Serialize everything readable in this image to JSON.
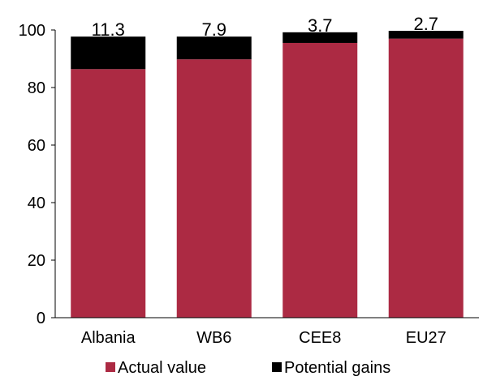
{
  "chart_data": {
    "type": "bar",
    "stacked": true,
    "categories": [
      "Albania",
      "WB6",
      "CEE8",
      "EU27"
    ],
    "series": [
      {
        "name": "Actual value",
        "values": [
          86.4,
          89.8,
          95.5,
          97.0
        ],
        "color": "#ac2a43"
      },
      {
        "name": "Potential gains",
        "values": [
          11.3,
          7.9,
          3.7,
          2.7
        ],
        "color": "#000000"
      }
    ],
    "data_labels": [
      "11.3",
      "7.9",
      "3.7",
      "2.7"
    ],
    "yticks": [
      "0",
      "20",
      "40",
      "60",
      "80",
      "100"
    ],
    "ylim": [
      0,
      100
    ],
    "grid": false,
    "legend_position": "bottom"
  }
}
